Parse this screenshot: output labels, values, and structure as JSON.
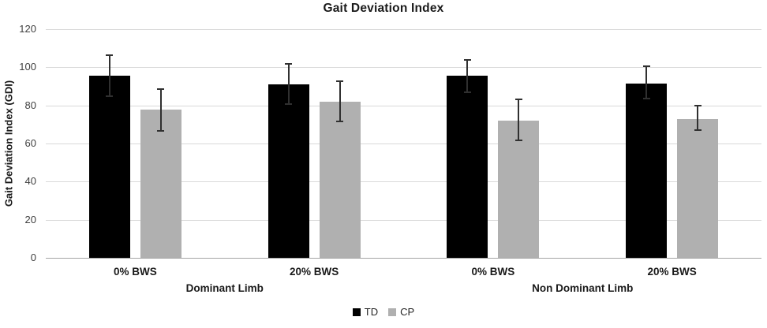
{
  "title": "Gait Deviation Index",
  "colors": {
    "td_bar": "#000000",
    "cp_bar": "#b0b0b0",
    "gridline": "#d9d9d9",
    "axis_line": "#a6a6a6",
    "error_bar": "#303030",
    "title_text": "#1a1a1a",
    "tick_text": "#404040"
  },
  "chart_data": {
    "type": "bar",
    "title": "Gait Deviation Index",
    "ylabel": "Gait Deviation Index (GDI)",
    "xlabel": "",
    "ylim": [
      0,
      120
    ],
    "yticks": [
      0,
      20,
      40,
      60,
      80,
      100,
      120
    ],
    "grid": true,
    "legend_position": "bottom",
    "categories": [
      "0% BWS",
      "20% BWS",
      "0% BWS",
      "20% BWS"
    ],
    "group_labels": [
      {
        "label": "Dominant Limb",
        "spans": [
          0,
          1
        ]
      },
      {
        "label": "Non Dominant Limb",
        "spans": [
          2,
          3
        ]
      }
    ],
    "series": [
      {
        "name": "TD",
        "color": "#000000",
        "values": [
          95.5,
          91,
          95.5,
          91.5
        ],
        "error_low": [
          85,
          80.5,
          87,
          83.5
        ],
        "error_high": [
          106.5,
          102,
          104,
          100.5
        ]
      },
      {
        "name": "CP",
        "color": "#b0b0b0",
        "values": [
          78,
          82,
          72,
          73
        ],
        "error_low": [
          66.5,
          71.5,
          61.5,
          67
        ],
        "error_high": [
          88.5,
          92.5,
          83,
          80
        ]
      }
    ]
  }
}
